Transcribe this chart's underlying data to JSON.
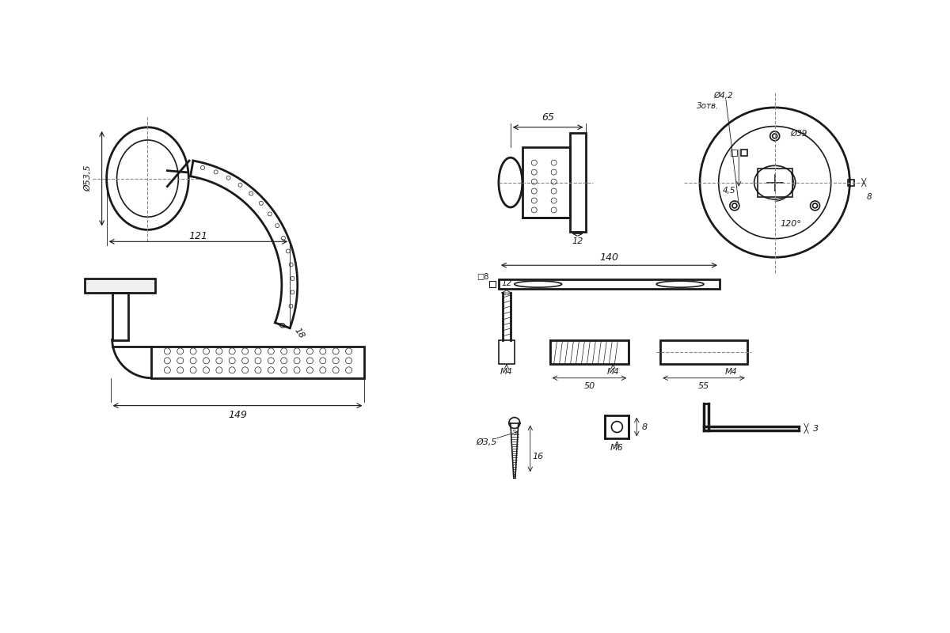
{
  "bg_color": "#ffffff",
  "line_color": "#1a1a1a",
  "dim_color": "#1a1a1a",
  "dash_color": "#555555",
  "gray_line": "#888888",
  "fig_width": 12.0,
  "fig_height": 8.0,
  "annotations": {
    "phi_535": "Ø53,5",
    "dim_18": "18",
    "dim_121": "121",
    "dim_149": "149",
    "dim_12_top": "12",
    "dim_65": "65",
    "phi_42": "Ø4,2",
    "otv_3": "3отв.",
    "phi_39": "Ø39",
    "dim_45": "4,5",
    "dim_8_right": "8",
    "dim_120": "120°",
    "dim_140": "140",
    "dim_8_sq": "□8",
    "dim_12_left": "12",
    "dim_M4": "M4",
    "dim_50": "50",
    "dim_M4b": "M4",
    "dim_55": "55",
    "dim_35": "Ø3,5",
    "dim_M6": "M6",
    "dim_16": "16",
    "dim_8b": "8",
    "dim_3": "3"
  }
}
